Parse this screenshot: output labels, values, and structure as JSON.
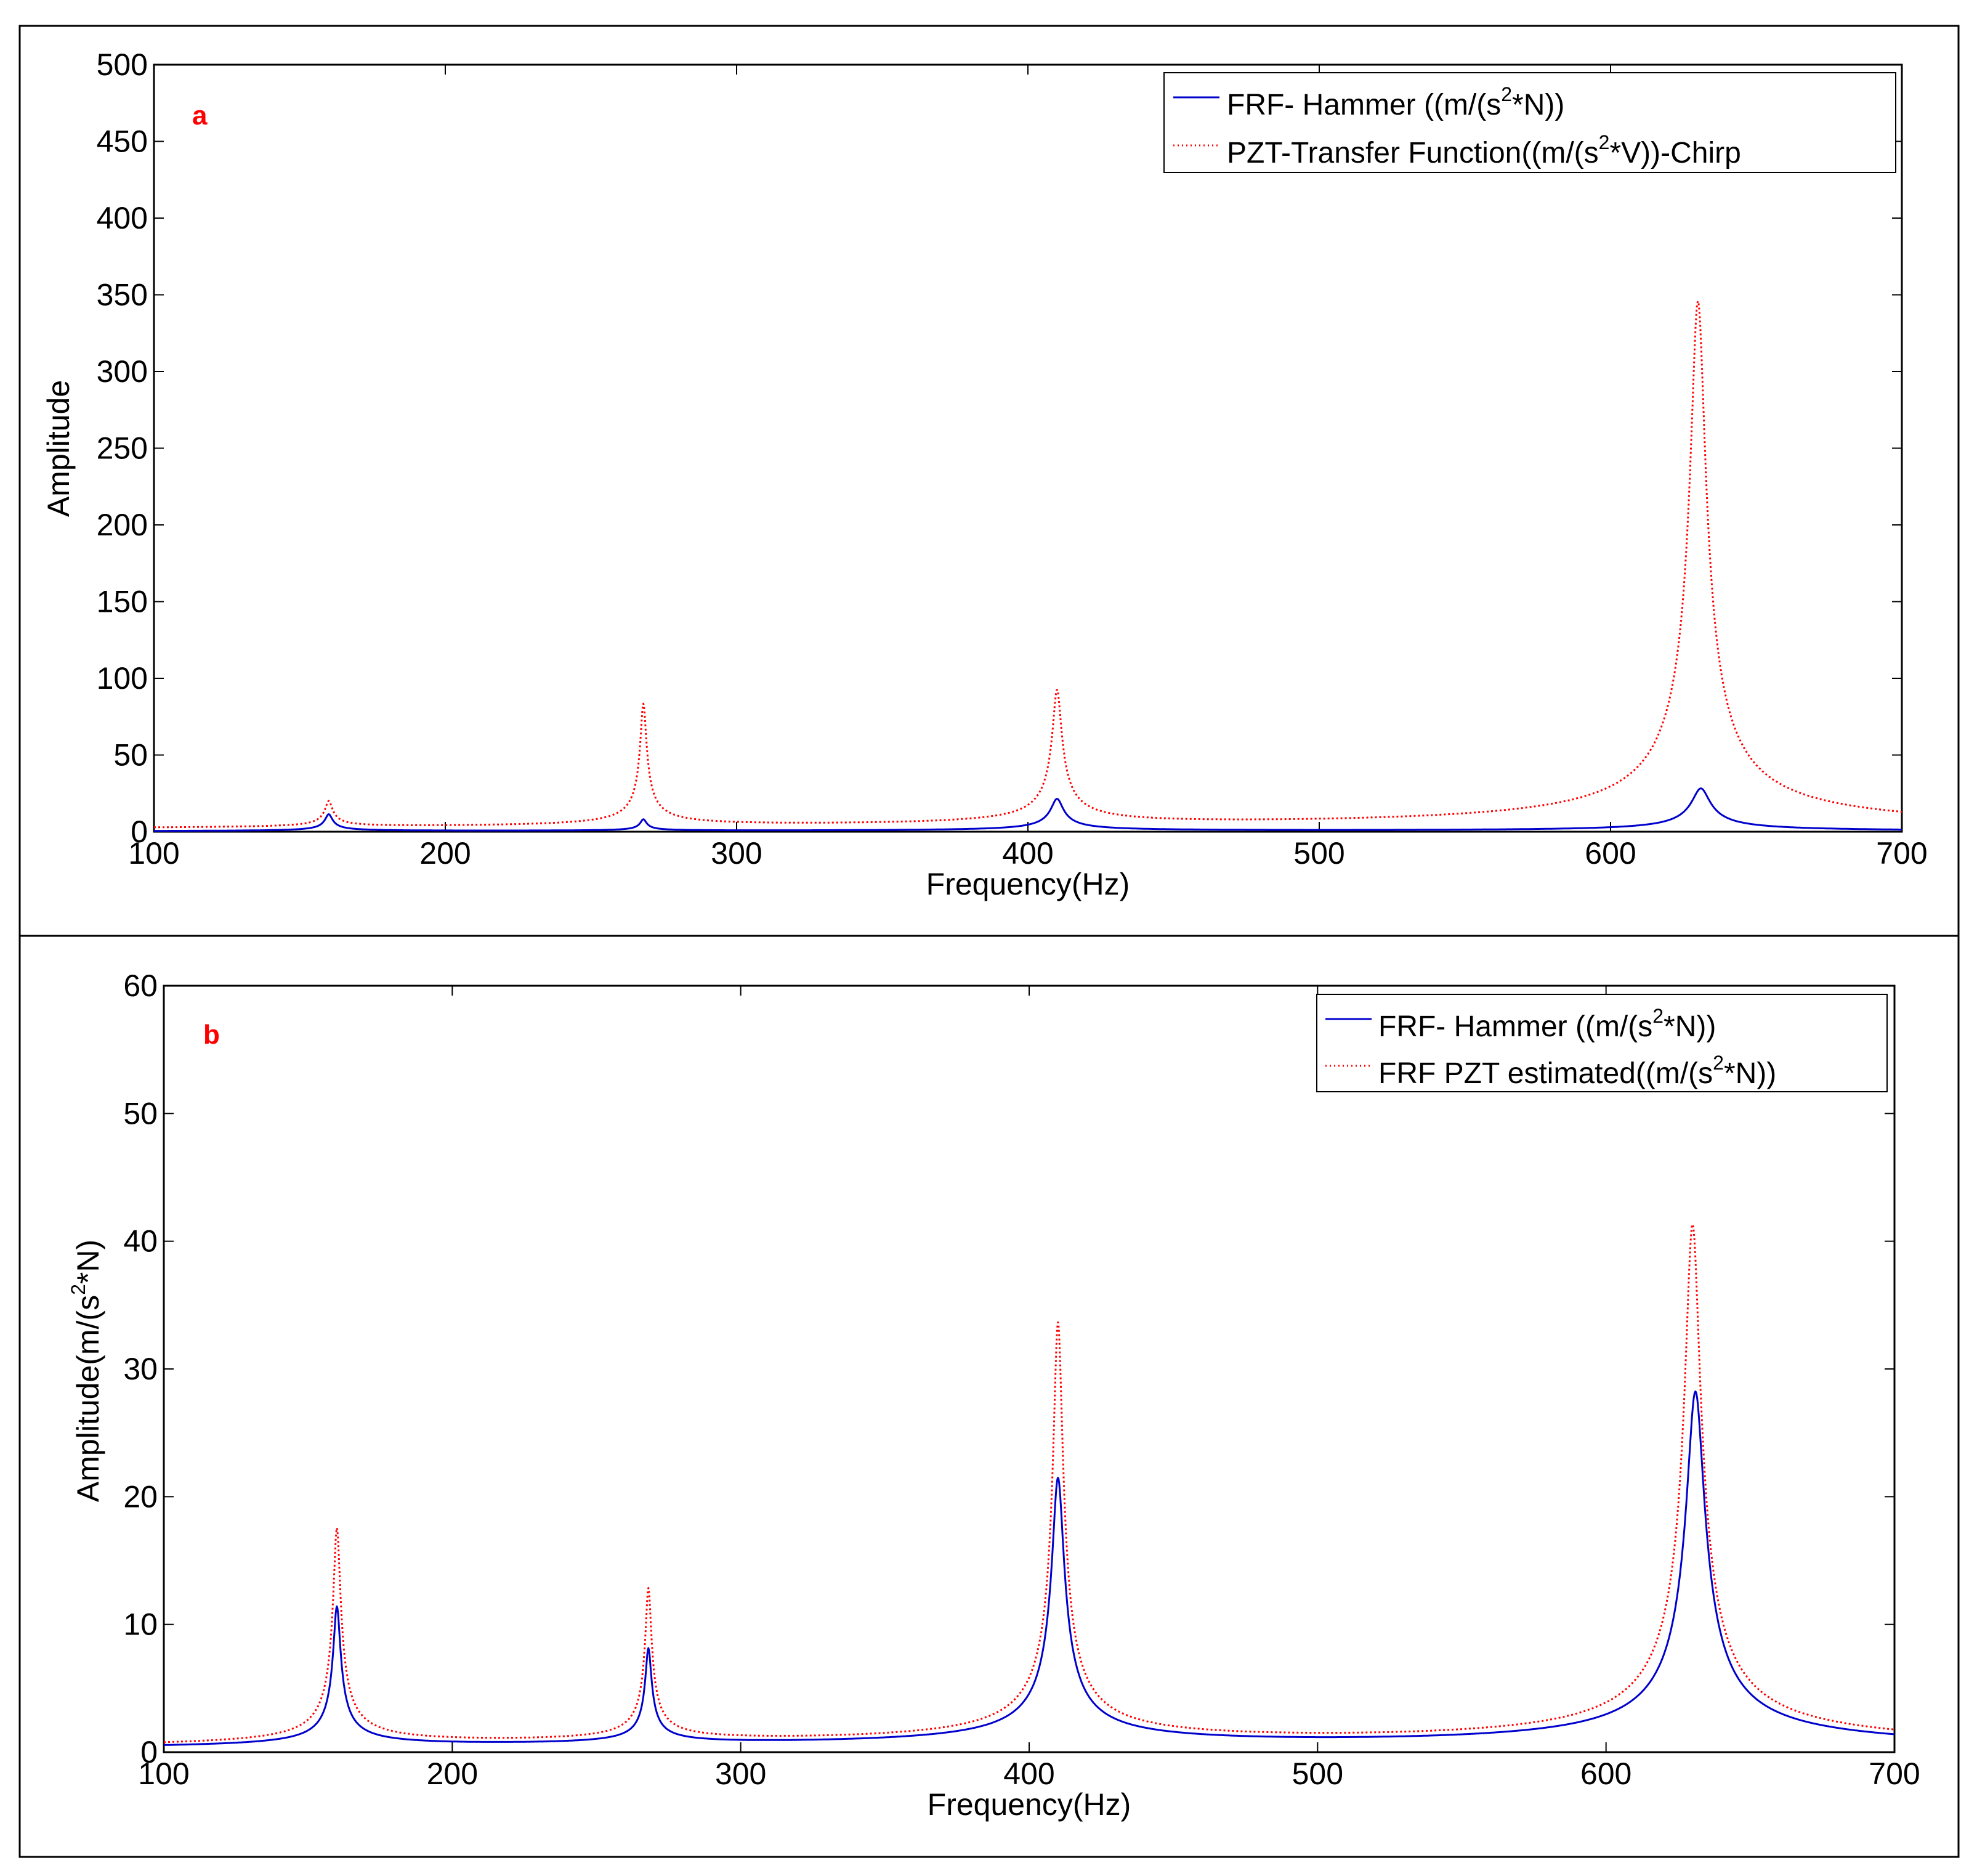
{
  "chart_data": [
    {
      "type": "line",
      "panel_label": "a",
      "xlabel": "Frequency(Hz)",
      "ylabel": "Amplitude",
      "xlim": [
        100,
        700
      ],
      "ylim": [
        0,
        500
      ],
      "xticks": [
        "100",
        "200",
        "300",
        "400",
        "500",
        "600",
        "700"
      ],
      "yticks": [
        "0",
        "50",
        "100",
        "150",
        "200",
        "250",
        "300",
        "350",
        "400",
        "450",
        "500"
      ],
      "grid": false,
      "legend": "top-right",
      "series": [
        {
          "name": "FRF- Hammer ((m/(s2*N))",
          "legend_parts": [
            "FRF- Hammer ((m/(s",
            "2",
            "*N))"
          ],
          "color": "#0000cc",
          "style": "solid",
          "peaks": [
            {
              "f": 160,
              "amp": 11,
              "width": 1.2
            },
            {
              "f": 268,
              "amp": 7.5,
              "width": 1.0
            },
            {
              "f": 410,
              "amp": 21,
              "width": 2.0
            },
            {
              "f": 631,
              "amp": 28,
              "width": 3.0
            }
          ]
        },
        {
          "name": "PZT-Transfer Function((m/(s2*V))-Chirp",
          "legend_parts": [
            "PZT-Transfer Function((m/(s",
            "2",
            "*V))-Chirp"
          ],
          "color": "#ff0000",
          "style": "dotted",
          "peaks": [
            {
              "f": 160,
              "amp": 17,
              "width": 1.2
            },
            {
              "f": 268,
              "amp": 80,
              "width": 1.0
            },
            {
              "f": 410,
              "amp": 88,
              "width": 1.5
            },
            {
              "f": 630,
              "amp": 345,
              "width": 2.5
            }
          ]
        }
      ]
    },
    {
      "type": "line",
      "panel_label": "b",
      "xlabel": "Frequency(Hz)",
      "ylabel": "Amplitude(m/(s2*N)",
      "ylabel_parts": [
        "Amplitude(m/(s",
        "2",
        "*N)"
      ],
      "xlim": [
        100,
        700
      ],
      "ylim": [
        0,
        60
      ],
      "xticks": [
        "100",
        "200",
        "300",
        "400",
        "500",
        "600",
        "700"
      ],
      "yticks": [
        "0",
        "10",
        "20",
        "30",
        "40",
        "50",
        "60"
      ],
      "grid": false,
      "legend": "top-right",
      "series": [
        {
          "name": "FRF- Hammer ((m/(s2*N))",
          "legend_parts": [
            "FRF- Hammer ((m/(s",
            "2",
            "*N))"
          ],
          "color": "#0000cc",
          "style": "solid",
          "peaks": [
            {
              "f": 160,
              "amp": 11,
              "width": 1.2
            },
            {
              "f": 268,
              "amp": 7.5,
              "width": 1.0
            },
            {
              "f": 410,
              "amp": 21,
              "width": 2.0
            },
            {
              "f": 631,
              "amp": 28,
              "width": 3.0
            }
          ]
        },
        {
          "name": "FRF PZT estimated((m/(s2*N))",
          "legend_parts": [
            "FRF PZT estimated((m/(s",
            "2",
            "*N))"
          ],
          "color": "#ff0000",
          "style": "dotted",
          "peaks": [
            {
              "f": 160,
              "amp": 17,
              "width": 1.2
            },
            {
              "f": 268,
              "amp": 12,
              "width": 1.0
            },
            {
              "f": 410,
              "amp": 33,
              "width": 1.6
            },
            {
              "f": 630,
              "amp": 41,
              "width": 2.6
            }
          ]
        }
      ]
    }
  ]
}
